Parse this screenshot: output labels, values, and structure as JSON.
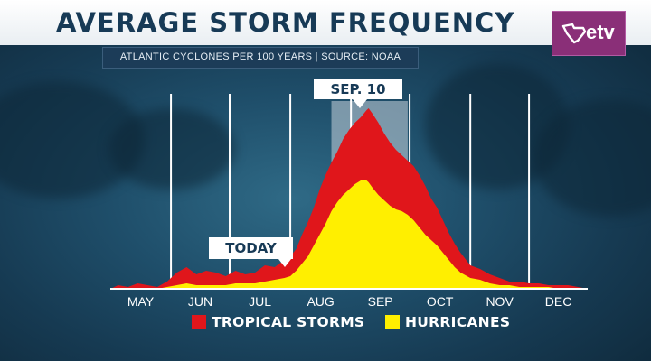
{
  "header": {
    "title": "AVERAGE STORM FREQUENCY",
    "subtitle": "ATLANTIC CYCLONES PER 100 YEARS | SOURCE: NOAA"
  },
  "logo": {
    "text": "etv",
    "color": "#8a2f78"
  },
  "callouts": {
    "peak": "SEP. 10",
    "today": "TODAY"
  },
  "legend": [
    {
      "label": "TROPICAL STORMS",
      "color": "#e0161b"
    },
    {
      "label": "HURRICANES",
      "color": "#ffef00"
    }
  ],
  "chart_data": {
    "type": "area",
    "title": "AVERAGE STORM FREQUENCY",
    "subtitle": "ATLANTIC CYCLONES PER 100 YEARS | SOURCE: NOAA",
    "x_axis": {
      "unit": "day_of_year",
      "range": [
        121,
        365
      ],
      "tick_labels": [
        "MAY",
        "JUN",
        "JUL",
        "AUG",
        "SEP",
        "OCT",
        "NOV",
        "DEC"
      ],
      "month_starts": [
        121,
        152,
        182,
        213,
        244,
        274,
        305,
        335
      ],
      "past_month_color": "#9aa3ab",
      "future_month_color": "#ffffff"
    },
    "y_axis": {
      "range": [
        0,
        100
      ],
      "tick_labels": [],
      "grid": false
    },
    "highlight_day": 253,
    "highlight_label": "SEP. 10",
    "today_day": 212,
    "today_label": "TODAY",
    "shaded_range": [
      234,
      273
    ],
    "legend_position": "bottom",
    "series": [
      {
        "name": "TROPICAL STORMS",
        "color": "#e0161b",
        "x": [
          121,
          125,
          130,
          135,
          140,
          145,
          150,
          155,
          160,
          165,
          170,
          175,
          180,
          185,
          190,
          195,
          200,
          205,
          210,
          213,
          216,
          219,
          222,
          225,
          228,
          231,
          234,
          237,
          240,
          243,
          246,
          249,
          252,
          253,
          255,
          258,
          261,
          264,
          267,
          270,
          273,
          276,
          279,
          282,
          285,
          288,
          291,
          294,
          297,
          300,
          305,
          310,
          315,
          320,
          325,
          330,
          335,
          340,
          345,
          350,
          355,
          360,
          365
        ],
        "values": [
          0,
          2,
          1,
          3,
          2,
          1,
          4,
          9,
          12,
          8,
          10,
          9,
          7,
          10,
          8,
          9,
          13,
          12,
          16,
          18,
          22,
          30,
          37,
          45,
          55,
          63,
          70,
          76,
          83,
          88,
          92,
          95,
          99,
          100,
          97,
          92,
          86,
          81,
          77,
          74,
          71,
          68,
          63,
          57,
          50,
          45,
          38,
          31,
          25,
          20,
          13,
          11,
          8,
          6,
          4,
          4,
          3,
          3,
          2,
          2,
          2,
          1,
          0
        ]
      },
      {
        "name": "HURRICANES",
        "color": "#ffef00",
        "x": [
          121,
          125,
          130,
          135,
          140,
          145,
          150,
          155,
          160,
          165,
          170,
          175,
          180,
          185,
          190,
          195,
          200,
          205,
          210,
          213,
          216,
          219,
          222,
          225,
          228,
          231,
          234,
          237,
          240,
          243,
          246,
          249,
          252,
          253,
          255,
          258,
          261,
          264,
          267,
          270,
          273,
          276,
          279,
          282,
          285,
          288,
          291,
          294,
          297,
          300,
          305,
          310,
          315,
          320,
          325,
          330,
          335,
          340,
          345,
          350,
          355,
          360,
          365
        ],
        "values": [
          0,
          0,
          0,
          0,
          0,
          0,
          1,
          2,
          3,
          2,
          2,
          2,
          2,
          3,
          3,
          3,
          4,
          5,
          6,
          7,
          10,
          14,
          18,
          24,
          30,
          36,
          43,
          48,
          52,
          55,
          58,
          60,
          60,
          59,
          56,
          52,
          49,
          46,
          44,
          43,
          41,
          38,
          34,
          30,
          27,
          24,
          20,
          16,
          12,
          9,
          6,
          5,
          3,
          2,
          2,
          1,
          1,
          1,
          1,
          0,
          0,
          0,
          0
        ]
      }
    ]
  }
}
